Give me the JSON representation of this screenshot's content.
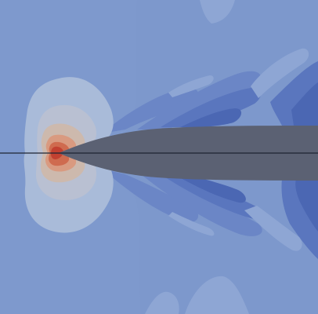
{
  "visualization": {
    "kind": "contour-field",
    "colors": {
      "background": "#7d98cc",
      "left_band": "#7e99cd",
      "upper_light": "#8ea6d4",
      "pale": "#9fb3d8",
      "paler": "#a9bbd9",
      "mid_blue": "#6b86c6",
      "dark_blue": "#5a76be",
      "deep_blue": "#4b67b3",
      "deepest_blue": "#3e5aa8",
      "warm_1": "#b9c0d2",
      "warm_2": "#cdb9ad",
      "warm_3": "#d99a80",
      "warm_4": "#cf6b4f",
      "hot": "#c24131",
      "body": "#5b6173",
      "axis_line": "#1e2433"
    }
  }
}
